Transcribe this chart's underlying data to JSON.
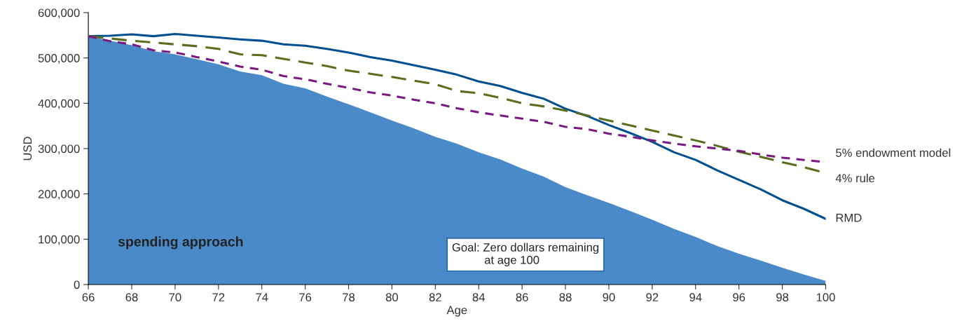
{
  "chart_data": {
    "type": "line",
    "xlabel": "Age",
    "ylabel": "USD",
    "x": [
      66,
      67,
      68,
      69,
      70,
      71,
      72,
      73,
      74,
      75,
      76,
      77,
      78,
      79,
      80,
      81,
      82,
      83,
      84,
      85,
      86,
      87,
      88,
      89,
      90,
      91,
      92,
      93,
      94,
      95,
      96,
      97,
      98,
      99,
      100
    ],
    "series": [
      {
        "name": "spending approach",
        "type": "area",
        "color": "#4a8ac8",
        "values": [
          548000,
          538000,
          528000,
          515000,
          508000,
          497000,
          486000,
          470000,
          462000,
          443000,
          433000,
          415000,
          398000,
          380000,
          362000,
          345000,
          326000,
          311000,
          292000,
          276000,
          256000,
          238000,
          215000,
          197000,
          180000,
          162000,
          143000,
          123000,
          105000,
          85000,
          68000,
          53000,
          37000,
          22000,
          8000
        ]
      },
      {
        "name": "RMD",
        "color": "#00508f",
        "line_style": "solid",
        "values": [
          548000,
          549000,
          552000,
          548000,
          553000,
          549000,
          545000,
          541000,
          538000,
          530000,
          527000,
          520000,
          512000,
          502000,
          494000,
          484000,
          474000,
          463000,
          448000,
          438000,
          423000,
          410000,
          388000,
          372000,
          352000,
          334000,
          315000,
          292000,
          275000,
          252000,
          231000,
          210000,
          186000,
          167000,
          145000
        ]
      },
      {
        "name": "4% rule",
        "color": "#5a6e1e",
        "line_style": "dashed",
        "values": [
          548000,
          543000,
          538000,
          534000,
          530000,
          526000,
          520000,
          508000,
          506000,
          498000,
          490000,
          482000,
          472000,
          465000,
          458000,
          450000,
          442000,
          427000,
          422000,
          412000,
          400000,
          393000,
          384000,
          373000,
          362000,
          351000,
          340000,
          329000,
          318000,
          306000,
          293000,
          282000,
          270000,
          259000,
          246000
        ]
      },
      {
        "name": "5% endowment model",
        "color": "#7a1a80",
        "line_style": "dotted",
        "values": [
          548000,
          537000,
          530000,
          517000,
          512000,
          502000,
          492000,
          481000,
          474000,
          460000,
          453000,
          443000,
          434000,
          424000,
          417000,
          408000,
          400000,
          389000,
          380000,
          373000,
          366000,
          359000,
          348000,
          343000,
          333000,
          326000,
          318000,
          311000,
          305000,
          300000,
          295000,
          287000,
          280000,
          275000,
          270000
        ]
      }
    ],
    "xlim": [
      66,
      100
    ],
    "xticks": [
      66,
      68,
      70,
      72,
      74,
      76,
      78,
      80,
      82,
      84,
      86,
      88,
      90,
      92,
      94,
      96,
      98,
      100
    ],
    "ylim": [
      0,
      600000
    ],
    "yticks": [
      {
        "value": 0,
        "label": "0"
      },
      {
        "value": 100000,
        "label": "100,000"
      },
      {
        "value": 200000,
        "label": "200,000"
      },
      {
        "value": 300000,
        "label": "300,000"
      },
      {
        "value": 400000,
        "label": "400,000"
      },
      {
        "value": 500000,
        "label": "500,000"
      },
      {
        "value": 600000,
        "label": "600,000"
      }
    ],
    "grid": false,
    "legend": false,
    "annotations": [
      "Goal: Zero dollars remaining\n          at age 100"
    ]
  }
}
